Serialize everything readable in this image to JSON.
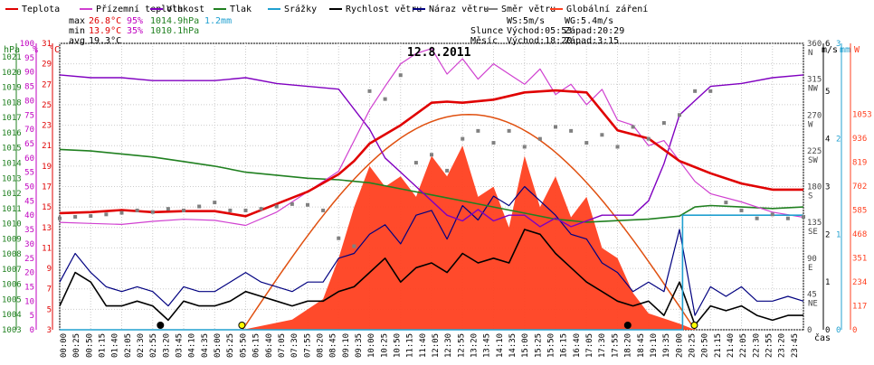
{
  "chart_data": {
    "type": "line",
    "title": "12.8.2011",
    "legend": [
      {
        "name": "Teplota",
        "color": "#e00000"
      },
      {
        "name": "Přízemní teplota",
        "color": "#d040d0"
      },
      {
        "name": "Vlhkost",
        "color": "#8000c0"
      },
      {
        "name": "Tlak",
        "color": "#208020"
      },
      {
        "name": "Srážky",
        "color": "#20a0d0"
      },
      {
        "name": "Rychlost větru",
        "color": "#000000"
      },
      {
        "name": "Náraz větru",
        "color": "#000080"
      },
      {
        "name": "Směr větru",
        "color": "#808080"
      },
      {
        "name": "Globální záření",
        "color": "#ff4020"
      }
    ],
    "stats": {
      "max_label": "max",
      "max_temp": "26.8°C",
      "max_hum": "95%",
      "max_press": "1014.9hPa",
      "rain": "1.2mm",
      "min_label": "min",
      "min_temp": "13.9°C",
      "min_hum": "35%",
      "min_press": "1010.1hPa",
      "avg_label": "avg",
      "avg_temp": "19.3°C"
    },
    "info": {
      "ws": "WS:5m/s",
      "wg": "WG:5.4m/s",
      "sun_label": "Slunce",
      "sun_rise": "Východ:05:53",
      "sun_set": "Západ:20:29",
      "moon_label": "Měsíc",
      "moon_rise": "Východ:18:20",
      "moon_set": "Západ:3:15"
    },
    "axis_units": {
      "hpa": "hPa",
      "pct": "%",
      "degc": "°C",
      "ms": "m/s",
      "mm": "mm",
      "w": "W",
      "time": "čas"
    },
    "hpa_ticks": [
      "1021",
      "1020",
      "1019",
      "1018",
      "1017",
      "1016",
      "1015",
      "1014",
      "1013",
      "1012",
      "1011",
      "1010",
      "1009",
      "1008",
      "1007",
      "1006",
      "1005",
      "1004",
      "1003"
    ],
    "pct_ticks": [
      "100",
      "95",
      "90",
      "85",
      "80",
      "75",
      "70",
      "65",
      "60",
      "55",
      "50",
      "45",
      "40",
      "35",
      "30",
      "25",
      "20",
      "15",
      "10",
      "5",
      "0"
    ],
    "degc_ticks": [
      "31",
      "29",
      "27",
      "25",
      "23",
      "21",
      "19",
      "17",
      "15",
      "13",
      "11",
      "9",
      "7",
      "5",
      "3"
    ],
    "dir_ticks": [
      {
        "v": "360",
        "d": "N"
      },
      {
        "v": "315",
        "d": "NW"
      },
      {
        "v": "270",
        "d": "W"
      },
      {
        "v": "225",
        "d": "SW"
      },
      {
        "v": "180",
        "d": "S"
      },
      {
        "v": "135",
        "d": "SE"
      },
      {
        "v": "90",
        "d": "E"
      },
      {
        "v": "45",
        "d": "NE"
      },
      {
        "v": "0",
        "d": ""
      }
    ],
    "ms_ticks": [
      "6",
      "5",
      "4",
      "3",
      "2",
      "1",
      "0"
    ],
    "mm_ticks": [
      "3",
      "2",
      "1",
      "0"
    ],
    "w_ticks": [
      "1053",
      "936",
      "819",
      "702",
      "585",
      "468",
      "351",
      "234",
      "117",
      "0"
    ],
    "x_labels": [
      "00:00",
      "00:25",
      "00:50",
      "01:15",
      "01:40",
      "02:05",
      "02:30",
      "02:55",
      "03:20",
      "03:45",
      "04:10",
      "04:35",
      "05:00",
      "05:25",
      "05:50",
      "06:15",
      "06:40",
      "07:05",
      "07:30",
      "07:55",
      "08:20",
      "08:45",
      "09:10",
      "09:35",
      "10:00",
      "10:25",
      "10:50",
      "11:15",
      "11:40",
      "12:05",
      "12:30",
      "12:55",
      "13:20",
      "13:45",
      "14:10",
      "14:35",
      "15:00",
      "15:25",
      "15:50",
      "16:15",
      "16:40",
      "17:05",
      "17:30",
      "17:55",
      "18:20",
      "18:45",
      "19:10",
      "19:35",
      "20:00",
      "20:25",
      "20:50",
      "21:15",
      "21:40",
      "22:05",
      "22:30",
      "22:55",
      "23:20",
      "23:45"
    ],
    "x_hours": [
      0,
      1,
      2,
      3,
      4,
      5,
      6,
      7,
      8,
      9,
      10,
      11,
      12,
      13,
      14,
      15,
      16,
      17,
      18,
      19,
      20,
      21,
      22,
      23,
      24
    ],
    "series": [
      {
        "name": "Teplota",
        "unit": "°C",
        "x": [
          0,
          1,
          2,
          3,
          4,
          5,
          6,
          7,
          8,
          9,
          9.5,
          10,
          11,
          12,
          12.5,
          13,
          14,
          15,
          16,
          17,
          18,
          19,
          20,
          21,
          22,
          23,
          24
        ],
        "values": [
          14.4,
          14.5,
          14.7,
          14.5,
          14.6,
          14.6,
          14.1,
          15.3,
          16.5,
          18.2,
          19.5,
          21.2,
          23.0,
          25.2,
          25.3,
          25.2,
          25.5,
          26.2,
          26.4,
          26.2,
          22.5,
          21.7,
          19.5,
          18.3,
          17.3,
          16.7,
          16.7
        ]
      },
      {
        "name": "Přízemní teplota",
        "unit": "°C",
        "x": [
          0,
          1,
          2,
          3,
          4,
          5,
          6,
          7,
          8,
          9,
          9.5,
          10,
          10.5,
          11,
          11.5,
          12,
          12.5,
          13,
          13.5,
          14,
          14.5,
          15,
          15.5,
          16,
          16.5,
          17,
          17.5,
          18,
          18.5,
          19,
          19.5,
          20,
          20.5,
          21,
          22,
          23,
          24
        ],
        "values": [
          13.5,
          13.4,
          13.3,
          13.6,
          13.8,
          13.7,
          13.2,
          14.5,
          16.5,
          18.5,
          21.5,
          24.5,
          26.8,
          29.0,
          30.0,
          30.5,
          28.0,
          29.5,
          27.5,
          29.0,
          28.0,
          27.0,
          28.5,
          26.0,
          27.0,
          25.0,
          26.5,
          23.5,
          23.0,
          21.0,
          21.5,
          19.5,
          17.5,
          16.3,
          15.5,
          14.5,
          14.0
        ]
      },
      {
        "name": "Vlhkost",
        "unit": "%",
        "x": [
          0,
          1,
          2,
          3,
          4,
          5,
          6,
          7,
          8,
          9,
          10,
          10.5,
          11,
          11.5,
          12,
          12.5,
          13,
          13.5,
          14,
          14.5,
          15,
          15.5,
          16,
          16.5,
          17,
          17.5,
          18,
          18.5,
          19,
          19.5,
          20,
          20.5,
          21,
          22,
          23,
          24
        ],
        "values": [
          89,
          88,
          88,
          87,
          87,
          87,
          88,
          86,
          85,
          84,
          70,
          60,
          55,
          50,
          45,
          40,
          38,
          42,
          38,
          40,
          40,
          36,
          39,
          36,
          38,
          40,
          40,
          40,
          45,
          58,
          75,
          80,
          85,
          86,
          88,
          89
        ]
      },
      {
        "name": "Tlak",
        "unit": "hPa",
        "x": [
          0,
          1,
          2,
          3,
          4,
          5,
          6,
          7,
          8,
          9,
          10,
          11,
          12,
          13,
          14,
          15,
          16,
          17,
          18,
          19,
          20,
          20.5,
          21,
          22,
          23,
          24
        ],
        "values": [
          1014.9,
          1014.8,
          1014.6,
          1014.4,
          1014.1,
          1013.8,
          1013.4,
          1013.2,
          1013.0,
          1012.9,
          1012.7,
          1012.3,
          1011.9,
          1011.5,
          1011.1,
          1010.7,
          1010.3,
          1010.1,
          1010.2,
          1010.3,
          1010.5,
          1011.1,
          1011.2,
          1011.1,
          1011.0,
          1011.1
        ]
      },
      {
        "name": "Srážky",
        "unit": "mm",
        "x": [
          0,
          20.1,
          20.1,
          24
        ],
        "values": [
          0,
          0,
          1.2,
          1.2
        ]
      },
      {
        "name": "Rychlost větru",
        "unit": "m/s",
        "x": [
          0,
          0.5,
          1,
          1.5,
          2,
          2.5,
          3,
          3.5,
          4,
          4.5,
          5,
          5.5,
          6,
          6.5,
          7,
          7.5,
          8,
          8.5,
          9,
          9.5,
          10,
          10.5,
          11,
          11.5,
          12,
          12.5,
          13,
          13.5,
          14,
          14.5,
          15,
          15.5,
          16,
          16.5,
          17,
          17.5,
          18,
          18.5,
          19,
          19.5,
          20,
          20.5,
          21,
          21.5,
          22,
          22.5,
          23,
          23.5,
          24
        ],
        "values": [
          0.5,
          1.2,
          1.0,
          0.5,
          0.5,
          0.6,
          0.5,
          0.2,
          0.6,
          0.5,
          0.5,
          0.6,
          0.8,
          0.7,
          0.6,
          0.5,
          0.6,
          0.6,
          0.8,
          0.9,
          1.2,
          1.5,
          1.0,
          1.3,
          1.4,
          1.2,
          1.6,
          1.4,
          1.5,
          1.4,
          2.1,
          2.0,
          1.6,
          1.3,
          1.0,
          0.8,
          0.6,
          0.5,
          0.6,
          0.3,
          1.0,
          0.1,
          0.5,
          0.4,
          0.5,
          0.3,
          0.2,
          0.3,
          0.3
        ]
      },
      {
        "name": "Náraz větru",
        "unit": "m/s",
        "x": [
          0,
          0.5,
          1,
          1.5,
          2,
          2.5,
          3,
          3.5,
          4,
          4.5,
          5,
          5.5,
          6,
          6.5,
          7,
          7.5,
          8,
          8.5,
          9,
          9.5,
          10,
          10.5,
          11,
          11.5,
          12,
          12.5,
          13,
          13.5,
          14,
          14.5,
          15,
          15.5,
          16,
          16.5,
          17,
          17.5,
          18,
          18.5,
          19,
          19.5,
          20,
          20.5,
          21,
          21.5,
          22,
          22.5,
          23,
          23.5,
          24
        ],
        "values": [
          1.0,
          1.6,
          1.2,
          0.9,
          0.8,
          0.9,
          0.8,
          0.5,
          0.9,
          0.8,
          0.8,
          1.0,
          1.2,
          1.0,
          0.9,
          0.8,
          1.0,
          1.0,
          1.5,
          1.6,
          2.0,
          2.2,
          1.8,
          2.4,
          2.5,
          1.9,
          2.6,
          2.3,
          2.8,
          2.6,
          3.0,
          2.7,
          2.4,
          2.0,
          1.9,
          1.4,
          1.2,
          0.8,
          1.0,
          0.8,
          2.1,
          0.3,
          0.9,
          0.7,
          0.9,
          0.6,
          0.6,
          0.7,
          0.6
        ]
      },
      {
        "name": "Směr větru",
        "unit": "°",
        "x": [
          0,
          0.5,
          1,
          1.5,
          2,
          2.5,
          3,
          3.5,
          4,
          4.5,
          5,
          5.5,
          6,
          6.5,
          7,
          7.5,
          8,
          8.5,
          9,
          9.5,
          10,
          10.5,
          11,
          11.5,
          12,
          12.5,
          13,
          13.5,
          14,
          14.5,
          15,
          15.5,
          16,
          16.5,
          17,
          17.5,
          18,
          18.5,
          19,
          19.5,
          20,
          20.5,
          21,
          21.5,
          22,
          22.5,
          23,
          23.5,
          24
        ],
        "values": [
          140,
          142,
          143,
          145,
          147,
          150,
          148,
          152,
          150,
          155,
          160,
          150,
          150,
          152,
          155,
          158,
          157,
          150,
          115,
          105,
          300,
          290,
          320,
          210,
          220,
          200,
          240,
          250,
          235,
          250,
          230,
          240,
          255,
          250,
          235,
          245,
          230,
          255,
          240,
          260,
          270,
          300,
          300,
          160,
          150,
          140,
          145,
          140,
          142
        ]
      },
      {
        "name": "Globální záření",
        "unit": "W",
        "x": [
          0,
          5.9,
          7.5,
          8.5,
          9,
          9.5,
          10,
          10.5,
          11,
          11.5,
          12,
          12.5,
          13,
          13.5,
          14,
          14.5,
          15,
          15.5,
          16,
          16.5,
          17,
          17.5,
          18,
          18.5,
          19,
          20,
          20.5,
          24
        ],
        "values": [
          0,
          0,
          50,
          150,
          350,
          600,
          800,
          700,
          750,
          650,
          850,
          750,
          900,
          650,
          700,
          500,
          850,
          600,
          750,
          550,
          650,
          400,
          350,
          180,
          80,
          30,
          0,
          0
        ]
      }
    ],
    "clear_sky": {
      "name": "Globální záření (teoretické)",
      "peak": 1053,
      "x_start": 5.9,
      "x_peak": 13.2,
      "x_end": 20.5
    },
    "events": [
      {
        "name": "moon-set",
        "x": 3.25
      },
      {
        "name": "sun-rise",
        "x": 5.88
      },
      {
        "name": "moon-rise",
        "x": 18.33
      },
      {
        "name": "sun-set",
        "x": 20.48
      }
    ],
    "grid": true,
    "legend_placement": "top"
  }
}
